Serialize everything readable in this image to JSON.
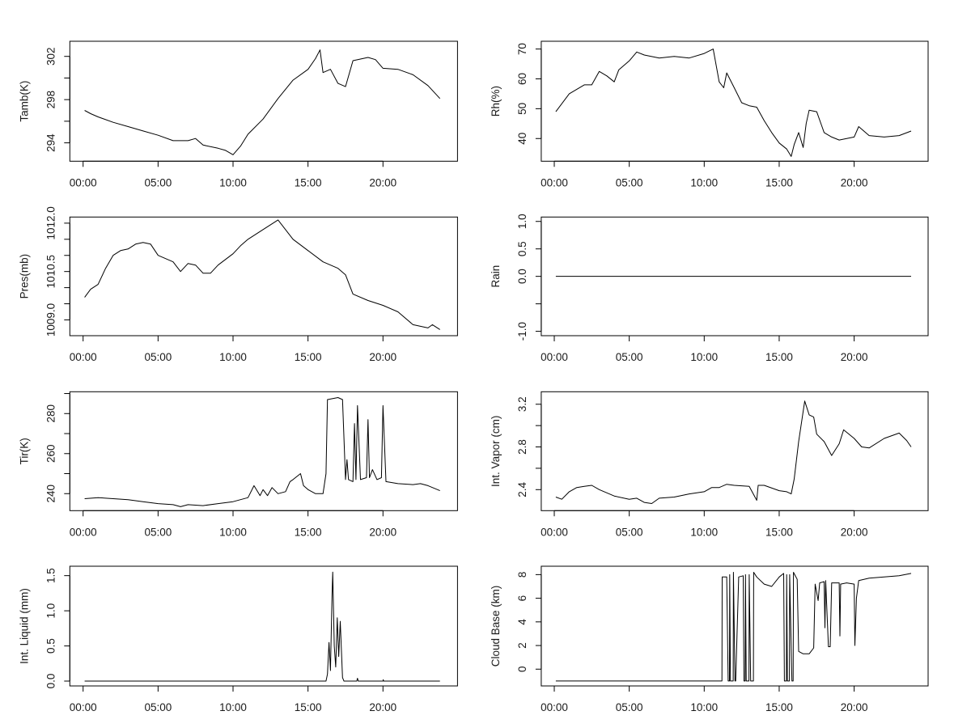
{
  "chart_data": [
    {
      "type": "line",
      "ylabel": "Tamb(K)",
      "xticks": [
        "00:00",
        "05:00",
        "10:00",
        "15:00",
        "20:00"
      ],
      "yticks": [
        294,
        296,
        298,
        300,
        302
      ],
      "ytick_labels": [
        "294",
        "",
        "298",
        "",
        "302"
      ],
      "ylim": [
        292.3,
        303.4
      ],
      "points": [
        [
          "00:06",
          297.0
        ],
        [
          "00:30",
          296.7
        ],
        [
          "01:00",
          296.4
        ],
        [
          "02:00",
          295.9
        ],
        [
          "03:00",
          295.5
        ],
        [
          "04:00",
          295.1
        ],
        [
          "05:00",
          294.7
        ],
        [
          "06:00",
          294.2
        ],
        [
          "07:00",
          294.2
        ],
        [
          "07:30",
          294.4
        ],
        [
          "08:00",
          293.8
        ],
        [
          "09:00",
          293.5
        ],
        [
          "09:30",
          293.3
        ],
        [
          "10:00",
          292.9
        ],
        [
          "10:30",
          293.7
        ],
        [
          "11:00",
          294.8
        ],
        [
          "12:00",
          296.2
        ],
        [
          "13:00",
          298.1
        ],
        [
          "14:00",
          299.8
        ],
        [
          "15:00",
          300.8
        ],
        [
          "15:30",
          301.8
        ],
        [
          "15:48",
          302.6
        ],
        [
          "16:00",
          300.5
        ],
        [
          "16:30",
          300.8
        ],
        [
          "17:00",
          299.5
        ],
        [
          "17:30",
          299.2
        ],
        [
          "18:00",
          301.6
        ],
        [
          "19:00",
          301.9
        ],
        [
          "19:30",
          301.7
        ],
        [
          "20:00",
          300.9
        ],
        [
          "21:00",
          300.8
        ],
        [
          "22:00",
          300.3
        ],
        [
          "23:00",
          299.3
        ],
        [
          "23:48",
          298.1
        ]
      ]
    },
    {
      "type": "line",
      "ylabel": "Rh(%)",
      "xticks": [
        "00:00",
        "05:00",
        "10:00",
        "15:00",
        "20:00"
      ],
      "yticks": [
        40,
        50,
        60,
        70
      ],
      "ytick_labels": [
        "40",
        "50",
        "60",
        "70"
      ],
      "ylim": [
        32.4,
        72.6
      ],
      "points": [
        [
          "00:06",
          49
        ],
        [
          "01:00",
          55
        ],
        [
          "02:00",
          58
        ],
        [
          "02:30",
          58
        ],
        [
          "03:00",
          62.5
        ],
        [
          "03:30",
          61
        ],
        [
          "04:00",
          59
        ],
        [
          "04:18",
          63
        ],
        [
          "05:00",
          66
        ],
        [
          "05:30",
          69
        ],
        [
          "06:00",
          68
        ],
        [
          "07:00",
          67
        ],
        [
          "08:00",
          67.5
        ],
        [
          "09:00",
          67
        ],
        [
          "10:00",
          68.5
        ],
        [
          "10:36",
          70
        ],
        [
          "11:00",
          59
        ],
        [
          "11:18",
          57
        ],
        [
          "11:30",
          62
        ],
        [
          "12:00",
          57
        ],
        [
          "12:30",
          52
        ],
        [
          "13:00",
          51
        ],
        [
          "13:30",
          50.5
        ],
        [
          "14:00",
          46
        ],
        [
          "14:30",
          42
        ],
        [
          "15:00",
          38.5
        ],
        [
          "15:30",
          36.5
        ],
        [
          "15:48",
          34
        ],
        [
          "16:00",
          38
        ],
        [
          "16:18",
          42
        ],
        [
          "16:36",
          37
        ],
        [
          "16:48",
          45
        ],
        [
          "17:00",
          49.5
        ],
        [
          "17:30",
          49
        ],
        [
          "18:00",
          42
        ],
        [
          "18:30",
          40.5
        ],
        [
          "19:00",
          39.5
        ],
        [
          "20:00",
          40.5
        ],
        [
          "20:18",
          44
        ],
        [
          "21:00",
          41
        ],
        [
          "22:00",
          40.5
        ],
        [
          "23:00",
          41
        ],
        [
          "23:48",
          42.5
        ]
      ]
    },
    {
      "type": "line",
      "ylabel": "Pres(mb)",
      "xticks": [
        "00:00",
        "05:00",
        "10:00",
        "15:00",
        "20:00"
      ],
      "yticks": [
        1009.0,
        1009.5,
        1010.0,
        1010.5,
        1011.0,
        1011.5,
        1012.0
      ],
      "ytick_labels": [
        "1009.0",
        "",
        "",
        "1010.5",
        "",
        "",
        "1012.0"
      ],
      "ylim": [
        1008.51,
        1012.19
      ],
      "points": [
        [
          "00:06",
          1009.7
        ],
        [
          "00:30",
          1009.95
        ],
        [
          "01:00",
          1010.1
        ],
        [
          "01:30",
          1010.6
        ],
        [
          "02:00",
          1011.0
        ],
        [
          "02:30",
          1011.15
        ],
        [
          "03:00",
          1011.2
        ],
        [
          "03:30",
          1011.35
        ],
        [
          "04:00",
          1011.4
        ],
        [
          "04:30",
          1011.35
        ],
        [
          "05:00",
          1011.0
        ],
        [
          "06:00",
          1010.8
        ],
        [
          "06:30",
          1010.5
        ],
        [
          "07:00",
          1010.75
        ],
        [
          "07:30",
          1010.7
        ],
        [
          "08:00",
          1010.45
        ],
        [
          "08:30",
          1010.45
        ],
        [
          "09:00",
          1010.7
        ],
        [
          "10:00",
          1011.05
        ],
        [
          "10:30",
          1011.3
        ],
        [
          "11:00",
          1011.5
        ],
        [
          "12:00",
          1011.8
        ],
        [
          "13:00",
          1012.1
        ],
        [
          "14:00",
          1011.5
        ],
        [
          "15:00",
          1011.15
        ],
        [
          "16:00",
          1010.8
        ],
        [
          "17:00",
          1010.6
        ],
        [
          "17:30",
          1010.4
        ],
        [
          "18:00",
          1009.8
        ],
        [
          "19:00",
          1009.6
        ],
        [
          "20:00",
          1009.45
        ],
        [
          "21:00",
          1009.25
        ],
        [
          "22:00",
          1008.85
        ],
        [
          "23:00",
          1008.75
        ],
        [
          "23:18",
          1008.85
        ],
        [
          "23:48",
          1008.7
        ]
      ]
    },
    {
      "type": "line",
      "ylabel": "Rain",
      "xticks": [
        "00:00",
        "05:00",
        "10:00",
        "15:00",
        "20:00"
      ],
      "yticks": [
        -1.0,
        -0.5,
        0.0,
        0.5,
        1.0
      ],
      "ytick_labels": [
        "-1.0",
        "",
        "0.0",
        "0.5",
        "1.0"
      ],
      "ylim": [
        -1.08,
        1.08
      ],
      "points": [
        [
          "00:06",
          0
        ],
        [
          "23:48",
          0
        ]
      ]
    },
    {
      "type": "line",
      "ylabel": "Tir(K)",
      "xticks": [
        "00:00",
        "05:00",
        "10:00",
        "15:00",
        "20:00"
      ],
      "yticks": [
        240,
        250,
        260,
        270,
        280,
        290
      ],
      "ytick_labels": [
        "240",
        "",
        "260",
        "",
        "280",
        ""
      ],
      "ylim": [
        231.5,
        290.9
      ],
      "points": [
        [
          "00:06",
          237.5
        ],
        [
          "01:00",
          238
        ],
        [
          "02:00",
          237.5
        ],
        [
          "03:00",
          237
        ],
        [
          "04:00",
          236
        ],
        [
          "05:00",
          235
        ],
        [
          "06:00",
          234.5
        ],
        [
          "06:30",
          233.5
        ],
        [
          "07:00",
          234.5
        ],
        [
          "08:00",
          234
        ],
        [
          "09:00",
          235
        ],
        [
          "10:00",
          236
        ],
        [
          "11:00",
          238
        ],
        [
          "11:24",
          244
        ],
        [
          "11:48",
          239
        ],
        [
          "12:00",
          242
        ],
        [
          "12:18",
          239
        ],
        [
          "12:36",
          243
        ],
        [
          "13:00",
          240
        ],
        [
          "13:30",
          241
        ],
        [
          "13:48",
          246
        ],
        [
          "14:00",
          247
        ],
        [
          "14:30",
          250
        ],
        [
          "14:42",
          244
        ],
        [
          "15:00",
          242
        ],
        [
          "15:30",
          240
        ],
        [
          "16:00",
          240
        ],
        [
          "16:12",
          250
        ],
        [
          "16:18",
          287
        ],
        [
          "17:00",
          288
        ],
        [
          "17:18",
          287
        ],
        [
          "17:30",
          247
        ],
        [
          "17:36",
          257
        ],
        [
          "17:42",
          247
        ],
        [
          "18:00",
          246
        ],
        [
          "18:06",
          275
        ],
        [
          "18:12",
          247
        ],
        [
          "18:18",
          284
        ],
        [
          "18:30",
          247
        ],
        [
          "18:54",
          248
        ],
        [
          "19:00",
          277
        ],
        [
          "19:06",
          248
        ],
        [
          "19:18",
          252
        ],
        [
          "19:36",
          247
        ],
        [
          "19:54",
          248
        ],
        [
          "20:00",
          284
        ],
        [
          "20:12",
          246
        ],
        [
          "21:00",
          245
        ],
        [
          "22:00",
          244.5
        ],
        [
          "22:30",
          245
        ],
        [
          "23:00",
          244
        ],
        [
          "23:48",
          241.5
        ]
      ]
    },
    {
      "type": "line",
      "ylabel": "Int. Vapor (cm)",
      "xticks": [
        "00:00",
        "05:00",
        "10:00",
        "15:00",
        "20:00"
      ],
      "yticks": [
        2.4,
        2.6,
        2.8,
        3.0,
        3.2
      ],
      "ytick_labels": [
        "2.4",
        "",
        "2.8",
        "",
        "3.2"
      ],
      "ylim": [
        2.203,
        3.317
      ],
      "points": [
        [
          "00:06",
          2.33
        ],
        [
          "00:30",
          2.31
        ],
        [
          "01:00",
          2.38
        ],
        [
          "01:30",
          2.42
        ],
        [
          "02:00",
          2.43
        ],
        [
          "02:30",
          2.44
        ],
        [
          "03:00",
          2.4
        ],
        [
          "04:00",
          2.34
        ],
        [
          "05:00",
          2.31
        ],
        [
          "05:30",
          2.32
        ],
        [
          "06:00",
          2.28
        ],
        [
          "06:30",
          2.27
        ],
        [
          "07:00",
          2.32
        ],
        [
          "08:00",
          2.33
        ],
        [
          "09:00",
          2.36
        ],
        [
          "10:00",
          2.38
        ],
        [
          "10:30",
          2.42
        ],
        [
          "11:00",
          2.42
        ],
        [
          "11:30",
          2.45
        ],
        [
          "12:00",
          2.44
        ],
        [
          "13:00",
          2.43
        ],
        [
          "13:30",
          2.3
        ],
        [
          "13:36",
          2.44
        ],
        [
          "14:00",
          2.44
        ],
        [
          "15:00",
          2.39
        ],
        [
          "15:30",
          2.38
        ],
        [
          "15:48",
          2.36
        ],
        [
          "16:00",
          2.5
        ],
        [
          "16:18",
          2.85
        ],
        [
          "16:42",
          3.23
        ],
        [
          "17:00",
          3.1
        ],
        [
          "17:18",
          3.08
        ],
        [
          "17:30",
          2.92
        ],
        [
          "18:00",
          2.85
        ],
        [
          "18:30",
          2.72
        ],
        [
          "19:00",
          2.83
        ],
        [
          "19:18",
          2.96
        ],
        [
          "20:00",
          2.88
        ],
        [
          "20:30",
          2.8
        ],
        [
          "21:00",
          2.79
        ],
        [
          "22:00",
          2.88
        ],
        [
          "23:00",
          2.93
        ],
        [
          "23:30",
          2.86
        ],
        [
          "23:48",
          2.8
        ]
      ]
    },
    {
      "type": "line",
      "ylabel": "Int. Liquid (mm)",
      "xticks": [
        "00:00",
        "05:00",
        "10:00",
        "15:00",
        "20:00"
      ],
      "yticks": [
        0.0,
        0.5,
        1.0,
        1.5
      ],
      "ytick_labels": [
        "0.0",
        "0.5",
        "1.0",
        "1.5"
      ],
      "ylim": [
        -0.069,
        1.634
      ],
      "points": [
        [
          "00:06",
          0
        ],
        [
          "16:12",
          0
        ],
        [
          "16:18",
          0.1
        ],
        [
          "16:24",
          0.55
        ],
        [
          "16:30",
          0.15
        ],
        [
          "16:36",
          1.2
        ],
        [
          "16:39",
          1.55
        ],
        [
          "16:45",
          0.5
        ],
        [
          "16:51",
          0.2
        ],
        [
          "16:57",
          0.9
        ],
        [
          "17:03",
          0.35
        ],
        [
          "17:09",
          0.85
        ],
        [
          "17:18",
          0.05
        ],
        [
          "17:24",
          0
        ],
        [
          "18:15",
          0
        ],
        [
          "18:18",
          0.04
        ],
        [
          "18:21",
          0
        ],
        [
          "20:00",
          0
        ],
        [
          "20:01",
          0.02
        ],
        [
          "20:03",
          0
        ],
        [
          "23:48",
          0
        ]
      ]
    },
    {
      "type": "line",
      "ylabel": "Cloud Base (km)",
      "xticks": [
        "00:00",
        "05:00",
        "10:00",
        "15:00",
        "20:00"
      ],
      "yticks": [
        0,
        2,
        4,
        6,
        8
      ],
      "ytick_labels": [
        "0",
        "2",
        "4",
        "6",
        "8"
      ],
      "ylim": [
        -1.42,
        8.71
      ],
      "points": [
        [
          "00:06",
          -1
        ],
        [
          "11:11",
          -1
        ],
        [
          "11:12",
          7.8
        ],
        [
          "11:30",
          7.8
        ],
        [
          "11:36",
          -1
        ],
        [
          "11:41",
          -1
        ],
        [
          "11:42",
          8
        ],
        [
          "11:45",
          -1
        ],
        [
          "11:56",
          -1
        ],
        [
          "11:57",
          8.2
        ],
        [
          "12:03",
          -1
        ],
        [
          "12:06",
          -1
        ],
        [
          "12:18",
          7.8
        ],
        [
          "12:36",
          7.9
        ],
        [
          "12:39",
          -1
        ],
        [
          "12:44",
          -1
        ],
        [
          "12:45",
          8.0
        ],
        [
          "12:48",
          -1
        ],
        [
          "12:59",
          -1
        ],
        [
          "13:00",
          8.0
        ],
        [
          "13:06",
          -1
        ],
        [
          "13:17",
          -1
        ],
        [
          "13:18",
          8.2
        ],
        [
          "13:30",
          7.8
        ],
        [
          "14:00",
          7.2
        ],
        [
          "14:30",
          7.0
        ],
        [
          "15:00",
          7.8
        ],
        [
          "15:18",
          8.1
        ],
        [
          "15:21",
          -1
        ],
        [
          "15:29",
          -1
        ],
        [
          "15:30",
          8.0
        ],
        [
          "15:33",
          -1
        ],
        [
          "15:41",
          -1
        ],
        [
          "15:42",
          8.0
        ],
        [
          "15:51",
          -1
        ],
        [
          "15:56",
          -1
        ],
        [
          "15:57",
          8.2
        ],
        [
          "16:12",
          7.6
        ],
        [
          "16:18",
          1.5
        ],
        [
          "16:36",
          1.3
        ],
        [
          "17:00",
          1.3
        ],
        [
          "17:18",
          1.8
        ],
        [
          "17:24",
          7.2
        ],
        [
          "17:36",
          5.8
        ],
        [
          "17:42",
          7.3
        ],
        [
          "18:00",
          7.4
        ],
        [
          "18:03",
          3.5
        ],
        [
          "18:06",
          7.5
        ],
        [
          "18:17",
          1.9
        ],
        [
          "18:24",
          1.9
        ],
        [
          "18:30",
          7.3
        ],
        [
          "19:00",
          7.3
        ],
        [
          "19:03",
          2.8
        ],
        [
          "19:06",
          7.2
        ],
        [
          "19:30",
          7.3
        ],
        [
          "20:00",
          7.2
        ],
        [
          "20:03",
          2.0
        ],
        [
          "20:09",
          6.0
        ],
        [
          "20:18",
          7.5
        ],
        [
          "21:00",
          7.7
        ],
        [
          "22:00",
          7.8
        ],
        [
          "23:00",
          7.9
        ],
        [
          "23:48",
          8.1
        ]
      ]
    }
  ]
}
